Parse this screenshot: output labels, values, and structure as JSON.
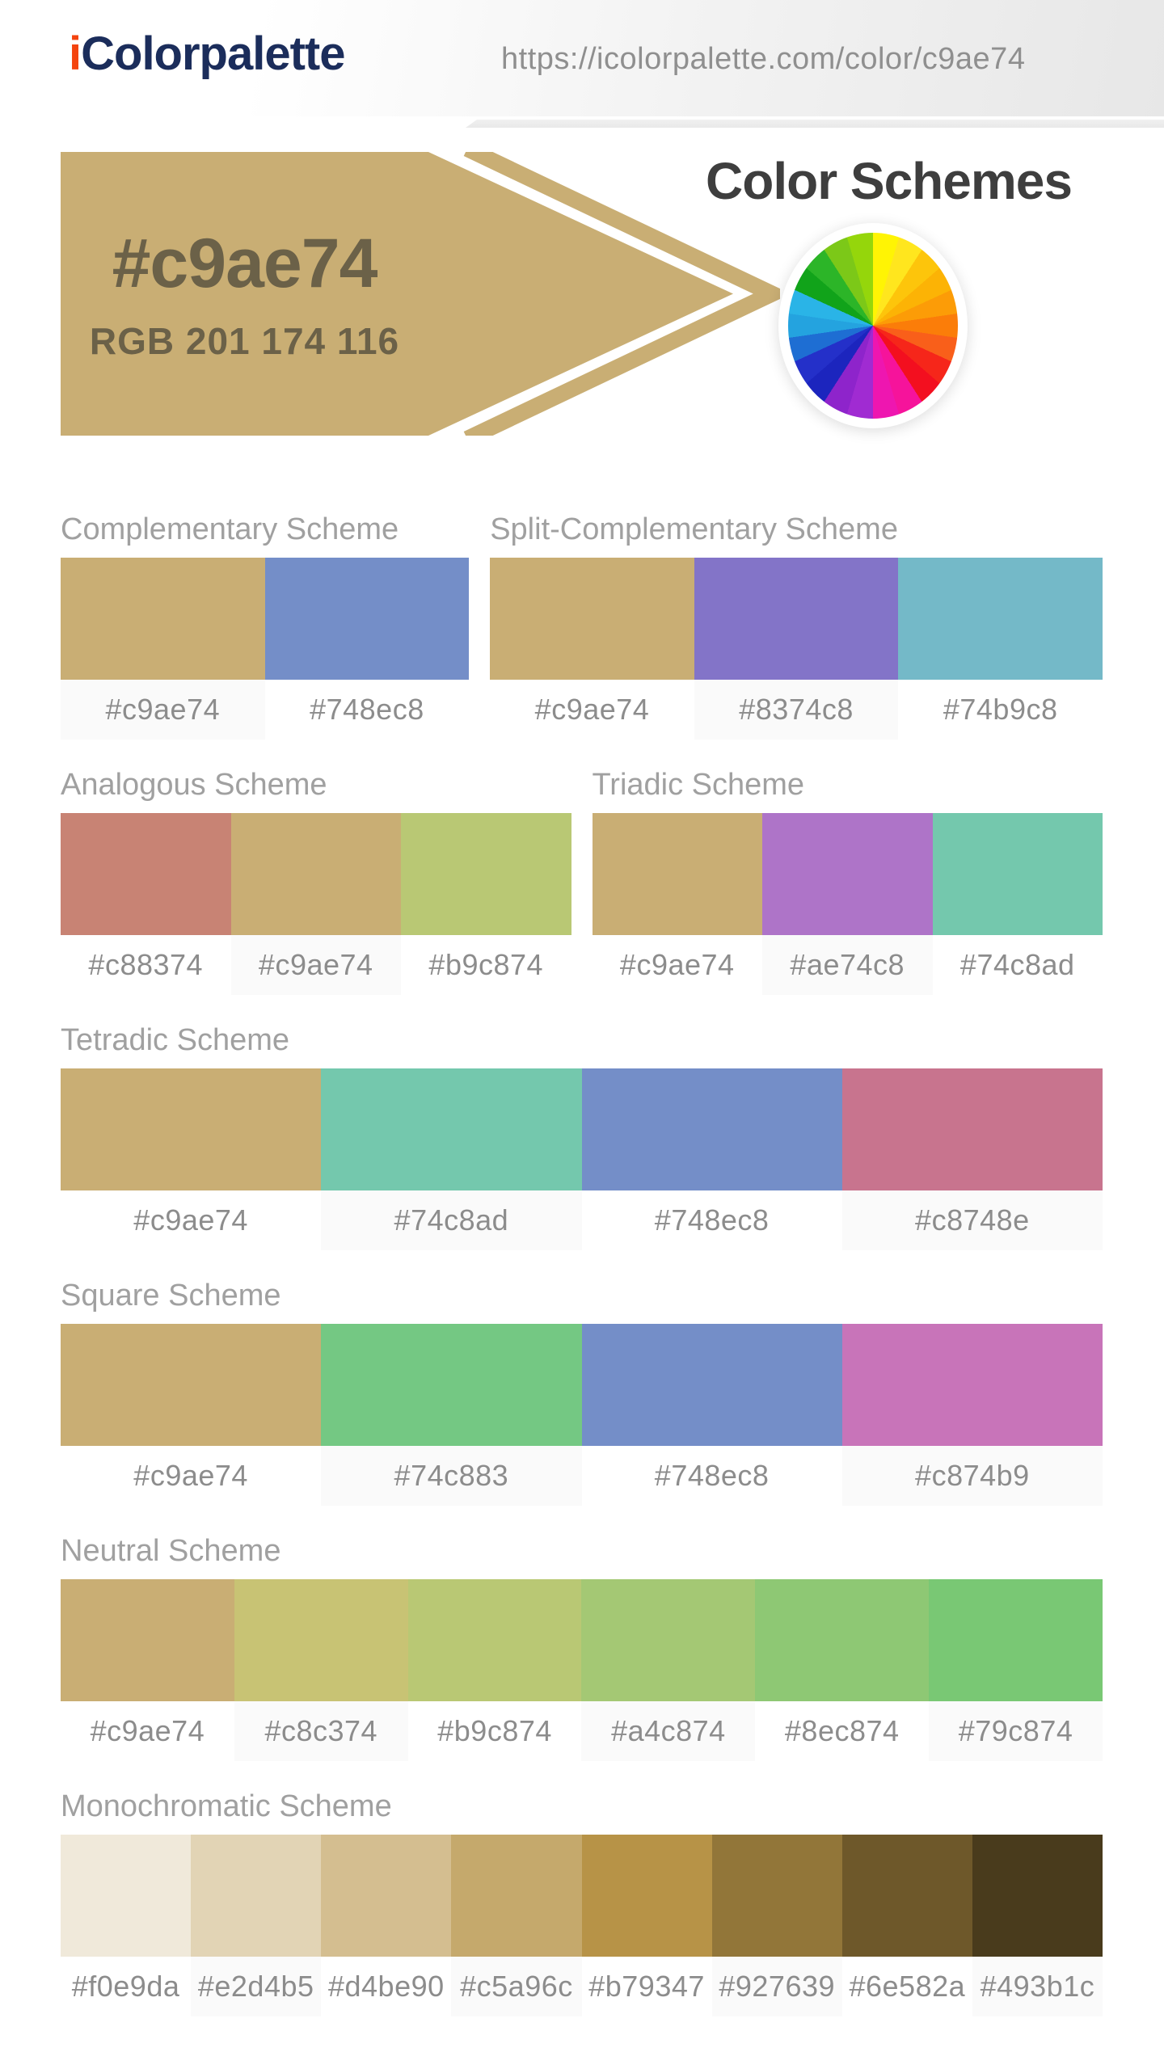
{
  "header": {
    "logo_prefix": "i",
    "logo_rest": "Colorpalette",
    "url": "https://icolorpalette.com/color/c9ae74"
  },
  "banner": {
    "hex": "#c9ae74",
    "rgb_label": "RGB 201 174 116",
    "background": "#c9ae74",
    "text_color": "#6b6148"
  },
  "schemes": {
    "heading": "Color Schemes"
  },
  "color_wheel": {
    "segments": [
      "#fff404",
      "#ffe61e",
      "#fdc50b",
      "#fcb305",
      "#fc9c07",
      "#fb7d09",
      "#f95f1a",
      "#f6261a",
      "#f30f1f",
      "#f6139b",
      "#ee16b0",
      "#a02bd2",
      "#8e24cb",
      "#1c25be",
      "#2430c9",
      "#1e6ed3",
      "#24a3df",
      "#2ab4e7",
      "#11a31a",
      "#2cb528",
      "#7cc818",
      "#95d60b"
    ]
  },
  "rows": [
    {
      "sections": [
        {
          "id": "complementary",
          "title": "Complementary Scheme",
          "colors": [
            {
              "hex": "#c9ae74",
              "shaded": true
            },
            {
              "hex": "#748ec8",
              "shaded": false
            }
          ]
        },
        {
          "id": "split-complementary",
          "title": "Split-Complementary Scheme",
          "colors": [
            {
              "hex": "#c9ae74",
              "shaded": false
            },
            {
              "hex": "#8374c8",
              "shaded": true
            },
            {
              "hex": "#74b9c8",
              "shaded": false
            }
          ]
        }
      ]
    },
    {
      "sections": [
        {
          "id": "analogous",
          "title": "Analogous Scheme",
          "colors": [
            {
              "hex": "#c88374",
              "shaded": false
            },
            {
              "hex": "#c9ae74",
              "shaded": true
            },
            {
              "hex": "#b9c874",
              "shaded": false
            }
          ]
        },
        {
          "id": "triadic",
          "title": "Triadic Scheme",
          "colors": [
            {
              "hex": "#c9ae74",
              "shaded": false
            },
            {
              "hex": "#ae74c8",
              "shaded": true
            },
            {
              "hex": "#74c8ad",
              "shaded": false
            }
          ]
        }
      ]
    },
    {
      "sections": [
        {
          "id": "tetradic",
          "title": "Tetradic Scheme",
          "colors": [
            {
              "hex": "#c9ae74",
              "shaded": false
            },
            {
              "hex": "#74c8ad",
              "shaded": true
            },
            {
              "hex": "#748ec8",
              "shaded": false
            },
            {
              "hex": "#c8748e",
              "shaded": true
            }
          ]
        }
      ]
    },
    {
      "sections": [
        {
          "id": "square",
          "title": "Square Scheme",
          "colors": [
            {
              "hex": "#c9ae74",
              "shaded": false
            },
            {
              "hex": "#74c883",
              "shaded": true
            },
            {
              "hex": "#748ec8",
              "shaded": false
            },
            {
              "hex": "#c874b9",
              "shaded": true
            }
          ]
        }
      ]
    },
    {
      "sections": [
        {
          "id": "neutral",
          "title": "Neutral Scheme",
          "colors": [
            {
              "hex": "#c9ae74",
              "shaded": false
            },
            {
              "hex": "#c8c374",
              "shaded": true
            },
            {
              "hex": "#b9c874",
              "shaded": false
            },
            {
              "hex": "#a4c874",
              "shaded": true
            },
            {
              "hex": "#8ec874",
              "shaded": false
            },
            {
              "hex": "#79c874",
              "shaded": true
            }
          ]
        }
      ]
    },
    {
      "sections": [
        {
          "id": "monochromatic",
          "title": "Monochromatic Scheme",
          "colors": [
            {
              "hex": "#f0e9da",
              "shaded": false
            },
            {
              "hex": "#e2d4b5",
              "shaded": true
            },
            {
              "hex": "#d4be90",
              "shaded": false
            },
            {
              "hex": "#c5a96c",
              "shaded": true
            },
            {
              "hex": "#b79347",
              "shaded": false
            },
            {
              "hex": "#927639",
              "shaded": true
            },
            {
              "hex": "#6e582a",
              "shaded": false
            },
            {
              "hex": "#493b1c",
              "shaded": true
            }
          ]
        }
      ]
    }
  ],
  "colors": {
    "logo_i": "#f4440f",
    "logo_text": "#1b2d5b",
    "heading_text": "#3e3e3e",
    "section_title_text": "#a0a0a0",
    "hex_label_text": "#8c8c8c",
    "label_shaded_bg": "#fafafa",
    "label_plain_bg": "#ffffff"
  }
}
